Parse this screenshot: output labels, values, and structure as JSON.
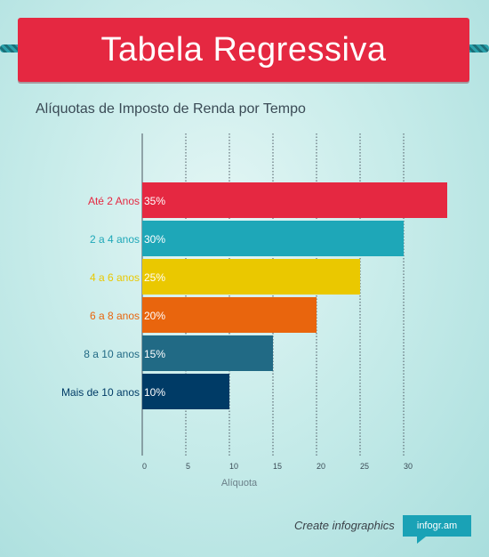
{
  "header": {
    "title": "Tabela Regressiva"
  },
  "chart_data": {
    "type": "bar",
    "orientation": "horizontal",
    "title": "Alíquotas de Imposto de Renda por Tempo",
    "xlabel": "Alíquota",
    "ylabel": "",
    "xlim": [
      0,
      35
    ],
    "xticks": [
      0,
      5,
      10,
      15,
      20,
      25,
      30
    ],
    "grid": true,
    "categories": [
      "Até 2 Anos",
      "2 a 4 anos",
      "4 a 6 anos",
      "6 a 8 anos",
      "8 a 10 anos",
      "Mais de 10 anos"
    ],
    "values": [
      35,
      30,
      25,
      20,
      15,
      10
    ],
    "data_labels": [
      "35%",
      "30%",
      "25%",
      "20%",
      "15%",
      "10%"
    ],
    "colors": [
      "#e52841",
      "#1ea7b8",
      "#eac800",
      "#e9650d",
      "#216a85",
      "#003b66"
    ]
  },
  "footer": {
    "cta": "Create infographics",
    "brand": "infogr.am"
  }
}
